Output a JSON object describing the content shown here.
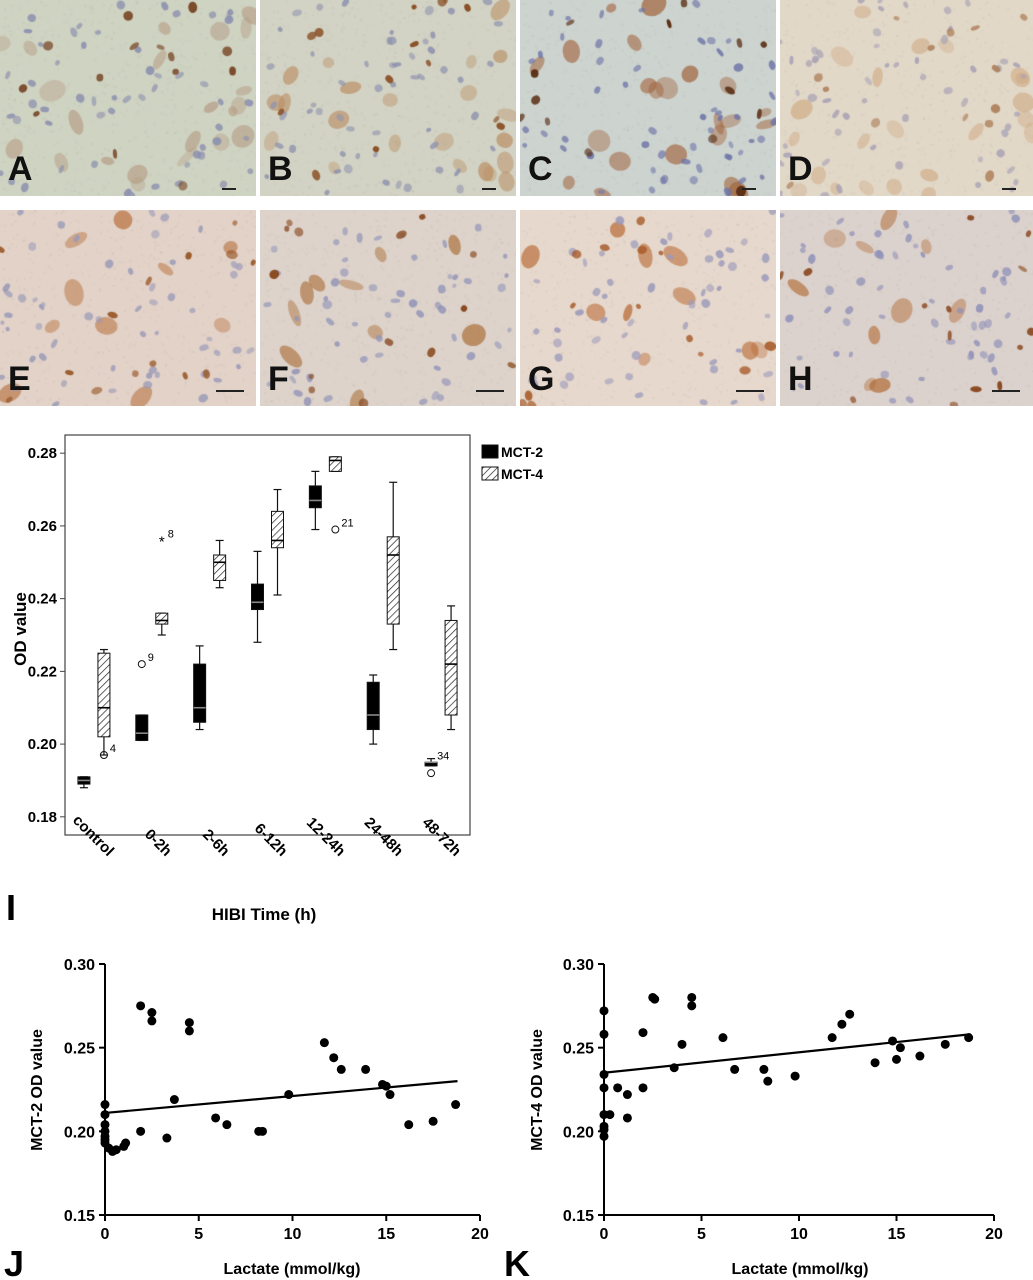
{
  "micrographs": [
    {
      "letter": "A",
      "bg": "#cfd3c2",
      "cell": "#b49a82",
      "dot": "#8a8fae",
      "dark": "#7a4a2a",
      "scale": "20 μm"
    },
    {
      "letter": "B",
      "bg": "#d2d3c4",
      "cell": "#ba8d62",
      "dot": "#8e92ae",
      "dark": "#8a4f25",
      "scale": "20 μm"
    },
    {
      "letter": "C",
      "bg": "#cdd3cf",
      "cell": "#a0623a",
      "dot": "#6f76a8",
      "dark": "#5a2f15",
      "scale": "20 μm"
    },
    {
      "letter": "D",
      "bg": "#e2d8c8",
      "cell": "#cfaa84",
      "dot": "#a8a2b4",
      "dark": "#b08460",
      "scale": "20 μm"
    },
    {
      "letter": "E",
      "bg": "#e2d2c8",
      "cell": "#b8703c",
      "dot": "#9a9ab8",
      "dark": "#9a5a2a",
      "scale": "20 μm"
    },
    {
      "letter": "F",
      "bg": "#ddd3cb",
      "cell": "#a8682f",
      "dot": "#9395b8",
      "dark": "#8a4a20",
      "scale": "20 μm"
    },
    {
      "letter": "G",
      "bg": "#e6d8cc",
      "cell": "#b5622a",
      "dot": "#9c9abb",
      "dark": "#a04d18",
      "scale": "20 μm"
    },
    {
      "letter": "H",
      "bg": "#dcd2cd",
      "cell": "#b06a34",
      "dot": "#8e90b8",
      "dark": "#8a4a22",
      "scale": "20 μm"
    }
  ],
  "panel_letters": {
    "I": "I",
    "J": "J",
    "K": "K"
  },
  "chart_data": [
    {
      "type": "box",
      "panel": "I",
      "ylabel": "OD value",
      "xlabel": "HIBI Time (h)",
      "ylim": [
        0.175,
        0.285
      ],
      "yticks": [
        "0.18",
        "0.20",
        "0.22",
        "0.24",
        "0.26",
        "0.28"
      ],
      "categories": [
        "control",
        "0-2h",
        "2-6h",
        "6-12h",
        "12-24h",
        "24-48h",
        "48-72h"
      ],
      "legend": {
        "position": "top-right",
        "entries": [
          "MCT-2",
          "MCT-4"
        ]
      },
      "series": [
        {
          "name": "MCT-2",
          "fill": "solid",
          "color": "#000000",
          "boxes": [
            {
              "min": 0.188,
              "q1": 0.189,
              "median": 0.19,
              "q3": 0.191,
              "max": 0.191
            },
            {
              "min": 0.201,
              "q1": 0.201,
              "median": 0.203,
              "q3": 0.208,
              "max": 0.208
            },
            {
              "min": 0.204,
              "q1": 0.206,
              "median": 0.21,
              "q3": 0.222,
              "max": 0.227
            },
            {
              "min": 0.228,
              "q1": 0.237,
              "median": 0.239,
              "q3": 0.244,
              "max": 0.253
            },
            {
              "min": 0.259,
              "q1": 0.265,
              "median": 0.267,
              "q3": 0.271,
              "max": 0.275
            },
            {
              "min": 0.2,
              "q1": 0.204,
              "median": 0.208,
              "q3": 0.217,
              "max": 0.219
            },
            {
              "min": 0.194,
              "q1": 0.194,
              "median": 0.195,
              "q3": 0.195,
              "max": 0.196
            }
          ]
        },
        {
          "name": "MCT-4",
          "fill": "hatched",
          "color": "#222222",
          "boxes": [
            {
              "min": 0.197,
              "q1": 0.202,
              "median": 0.21,
              "q3": 0.225,
              "max": 0.226
            },
            {
              "min": 0.23,
              "q1": 0.233,
              "median": 0.234,
              "q3": 0.236,
              "max": 0.236
            },
            {
              "min": 0.243,
              "q1": 0.245,
              "median": 0.25,
              "q3": 0.252,
              "max": 0.256
            },
            {
              "min": 0.241,
              "q1": 0.254,
              "median": 0.256,
              "q3": 0.264,
              "max": 0.27
            },
            {
              "min": 0.275,
              "q1": 0.275,
              "median": 0.278,
              "q3": 0.279,
              "max": 0.279
            },
            {
              "min": 0.226,
              "q1": 0.233,
              "median": 0.252,
              "q3": 0.257,
              "max": 0.272
            },
            {
              "min": 0.204,
              "q1": 0.208,
              "median": 0.222,
              "q3": 0.234,
              "max": 0.238
            }
          ]
        }
      ],
      "outliers": [
        {
          "category": "control",
          "series": "MCT-4",
          "value": 0.197,
          "marker": "circle",
          "label": "4"
        },
        {
          "category": "0-2h",
          "series": "MCT-2",
          "value": 0.222,
          "marker": "circle",
          "label": "9"
        },
        {
          "category": "0-2h",
          "series": "MCT-4",
          "value": 0.256,
          "marker": "star",
          "label": "8"
        },
        {
          "category": "12-24h",
          "series": "MCT-4",
          "value": 0.259,
          "marker": "circle",
          "label": "21"
        },
        {
          "category": "48-72h",
          "series": "MCT-2",
          "value": 0.192,
          "marker": "circle",
          "label": ""
        },
        {
          "category": "48-72h",
          "series": "MCT-2",
          "value": 0.195,
          "marker": "none",
          "label": "34"
        }
      ]
    },
    {
      "type": "scatter",
      "panel": "J",
      "xlabel": "Lactate (mmol/kg)",
      "ylabel": "MCT-2 OD value",
      "xlim": [
        0,
        20
      ],
      "ylim": [
        0.15,
        0.3
      ],
      "xticks": [
        "0",
        "5",
        "10",
        "15",
        "20"
      ],
      "yticks": [
        "0.15",
        "0.20",
        "0.25",
        "0.30"
      ],
      "fit_line": {
        "x": [
          0,
          18.8
        ],
        "y": [
          0.211,
          0.23
        ]
      },
      "points": [
        [
          0,
          0.216
        ],
        [
          0,
          0.21
        ],
        [
          0,
          0.204
        ],
        [
          0,
          0.2
        ],
        [
          0,
          0.197
        ],
        [
          0,
          0.195
        ],
        [
          0,
          0.193
        ],
        [
          0.2,
          0.19
        ],
        [
          0.4,
          0.188
        ],
        [
          0.6,
          0.189
        ],
        [
          1.0,
          0.191
        ],
        [
          1.1,
          0.193
        ],
        [
          1.9,
          0.275
        ],
        [
          1.9,
          0.2
        ],
        [
          2.5,
          0.271
        ],
        [
          2.5,
          0.266
        ],
        [
          3.3,
          0.196
        ],
        [
          3.7,
          0.219
        ],
        [
          4.5,
          0.265
        ],
        [
          4.5,
          0.26
        ],
        [
          5.9,
          0.208
        ],
        [
          6.5,
          0.204
        ],
        [
          8.2,
          0.2
        ],
        [
          8.4,
          0.2
        ],
        [
          9.8,
          0.222
        ],
        [
          11.7,
          0.253
        ],
        [
          12.2,
          0.244
        ],
        [
          12.6,
          0.237
        ],
        [
          13.9,
          0.237
        ],
        [
          14.8,
          0.228
        ],
        [
          15.0,
          0.227
        ],
        [
          15.2,
          0.222
        ],
        [
          16.2,
          0.204
        ],
        [
          17.5,
          0.206
        ],
        [
          18.7,
          0.216
        ]
      ]
    },
    {
      "type": "scatter",
      "panel": "K",
      "xlabel": "Lactate (mmol/kg)",
      "ylabel": "MCT-4 OD value",
      "xlim": [
        0,
        20
      ],
      "ylim": [
        0.15,
        0.3
      ],
      "xticks": [
        "0",
        "5",
        "10",
        "15",
        "20"
      ],
      "yticks": [
        "0.15",
        "0.20",
        "0.25",
        "0.30"
      ],
      "fit_line": {
        "x": [
          0,
          18.8
        ],
        "y": [
          0.235,
          0.258
        ]
      },
      "points": [
        [
          0,
          0.272
        ],
        [
          0,
          0.258
        ],
        [
          0,
          0.234
        ],
        [
          0,
          0.226
        ],
        [
          0,
          0.21
        ],
        [
          0,
          0.203
        ],
        [
          0,
          0.201
        ],
        [
          0,
          0.197
        ],
        [
          0.3,
          0.21
        ],
        [
          0.7,
          0.226
        ],
        [
          1.2,
          0.208
        ],
        [
          1.2,
          0.222
        ],
        [
          2.0,
          0.226
        ],
        [
          2.0,
          0.259
        ],
        [
          2.5,
          0.28
        ],
        [
          2.6,
          0.279
        ],
        [
          3.6,
          0.238
        ],
        [
          4.0,
          0.252
        ],
        [
          4.5,
          0.28
        ],
        [
          4.5,
          0.275
        ],
        [
          6.1,
          0.256
        ],
        [
          6.7,
          0.237
        ],
        [
          8.2,
          0.237
        ],
        [
          8.4,
          0.23
        ],
        [
          9.8,
          0.233
        ],
        [
          11.7,
          0.256
        ],
        [
          12.2,
          0.264
        ],
        [
          12.6,
          0.27
        ],
        [
          13.9,
          0.241
        ],
        [
          14.8,
          0.254
        ],
        [
          15.0,
          0.243
        ],
        [
          15.2,
          0.25
        ],
        [
          16.2,
          0.245
        ],
        [
          17.5,
          0.252
        ],
        [
          18.7,
          0.256
        ]
      ]
    }
  ]
}
